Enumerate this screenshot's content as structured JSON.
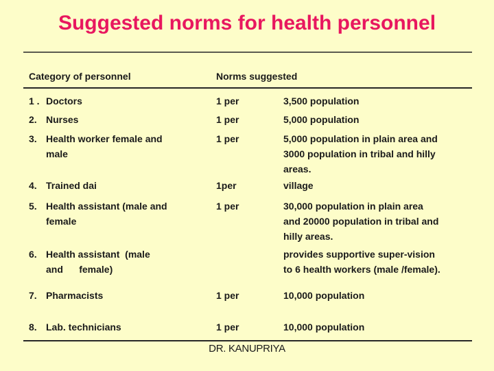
{
  "slide": {
    "title": "Suggested norms for health personnel",
    "footer": "DR. KANUPRIYA",
    "colors": {
      "background": "#FDFDC9",
      "title": "#E8175F",
      "text": "#1a1a1a",
      "rule_top": "#5a5a50",
      "rule_table": "#262626"
    }
  },
  "table": {
    "headers": {
      "category": "Category of personnel",
      "norms": "Norms suggested"
    },
    "rows": [
      {
        "num": "1 .",
        "category": "Doctors",
        "per": "1 per",
        "value": "3,500 population"
      },
      {
        "num": "2.",
        "category": "Nurses",
        "per": "1 per",
        "value": "5,000 population"
      },
      {
        "num": "3.",
        "category": "Health worker female and\nmale",
        "per": "1 per",
        "value": "5,000 population in plain area and\n3000 population in tribal and hilly\nareas."
      },
      {
        "num": "4.",
        "category": "Trained dai",
        "per": "1per",
        "value": "village"
      },
      {
        "num": "5.",
        "category": "Health assistant (male and\nfemale",
        "per": "1 per",
        "value": "30,000 population in plain area\nand 20000 population in tribal and\nhilly areas."
      },
      {
        "num": "6.",
        "category": "Health assistant  (male\nand      female)",
        "per": "",
        "value": "provides supportive super-vision\nto 6 health workers (male /female)."
      },
      {
        "num": "7.",
        "category": "Pharmacists",
        "per": "1 per",
        "value": "10,000 population"
      },
      {
        "num": "8.",
        "category": "Lab. technicians",
        "per": "1 per",
        "value": "10,000 population"
      }
    ]
  }
}
